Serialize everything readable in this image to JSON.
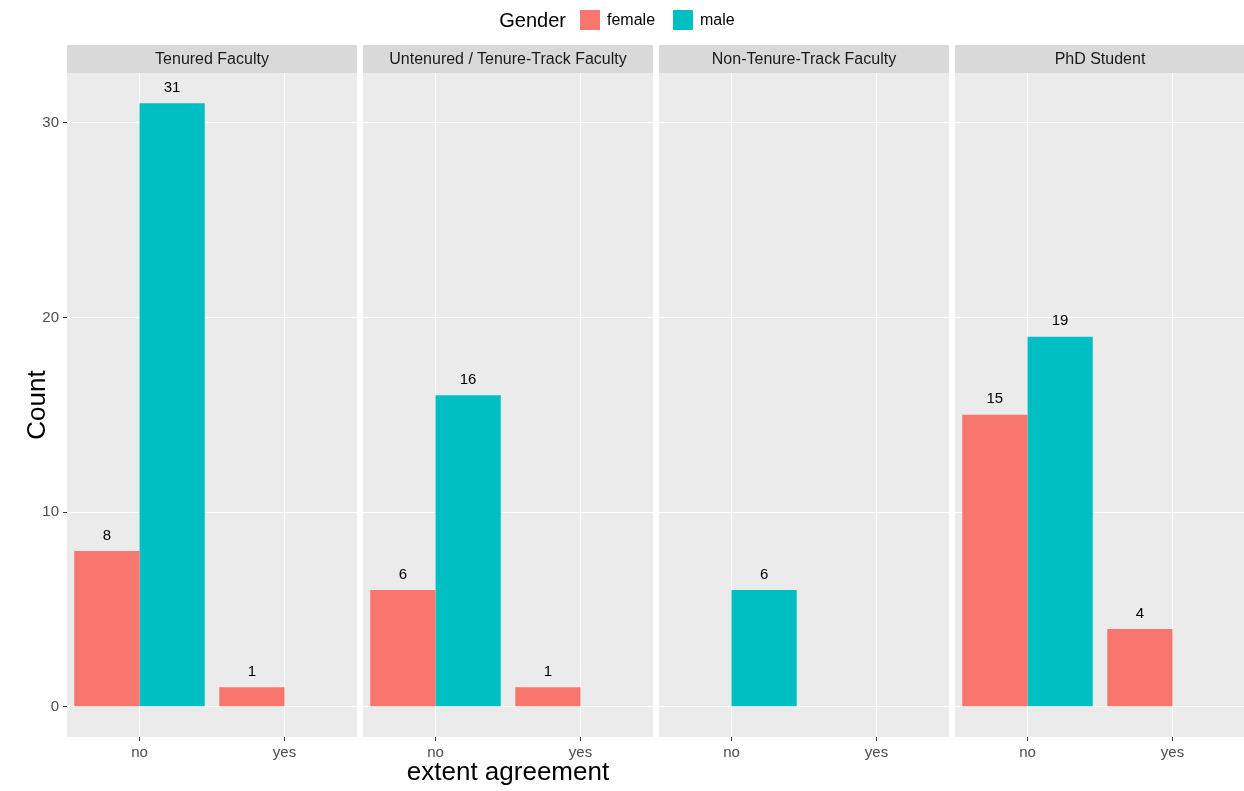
{
  "chart_data": [
    {
      "type": "bar",
      "title": "Tenured Faculty",
      "ylabel": "Count",
      "legend_title": "Gender",
      "legend": "top",
      "grid": true,
      "data_labels": true,
      "categories": [
        "no",
        "yes"
      ],
      "ylim": [
        -1.55,
        32.55
      ],
      "yticks": [
        0,
        10,
        20,
        30
      ],
      "series": [
        {
          "name": "female",
          "color": "#f8766d",
          "values": [
            8,
            1
          ]
        },
        {
          "name": "male",
          "color": "#00bfc4",
          "values": [
            31,
            null
          ]
        }
      ]
    },
    {
      "type": "bar",
      "title": "Untenured / Tenure-Track Faculty",
      "xlabel": "extent agreement",
      "grid": true,
      "data_labels": true,
      "tick_labels": "x",
      "categories": [
        "no",
        "yes"
      ],
      "ylim": [
        -1.55,
        32.55
      ],
      "yticks": [
        0,
        10,
        20,
        30
      ],
      "series": [
        {
          "color": "#f8766d",
          "values": [
            6,
            1
          ]
        },
        {
          "color": "#00bfc4",
          "values": [
            16,
            null
          ]
        }
      ]
    },
    {
      "type": "bar",
      "title": "Non-Tenure-Track Faculty",
      "grid": true,
      "data_labels": true,
      "tick_labels": "x",
      "categories": [
        "no",
        "yes"
      ],
      "ylim": [
        -1.55,
        32.55
      ],
      "yticks": [
        0,
        10,
        20,
        30
      ],
      "series": [
        {
          "color": "#f8766d",
          "values": [
            null,
            null
          ]
        },
        {
          "color": "#00bfc4",
          "values": [
            6,
            null
          ]
        }
      ]
    },
    {
      "type": "bar",
      "title": "PhD Student",
      "grid": true,
      "data_labels": true,
      "tick_labels": "x",
      "categories": [
        "no",
        "yes"
      ],
      "ylim": [
        -1.55,
        32.55
      ],
      "yticks": [
        0,
        10,
        20,
        30
      ],
      "series": [
        {
          "color": "#f8766d",
          "values": [
            15,
            4
          ]
        },
        {
          "color": "#00bfc4",
          "values": [
            19,
            null
          ]
        }
      ]
    }
  ]
}
